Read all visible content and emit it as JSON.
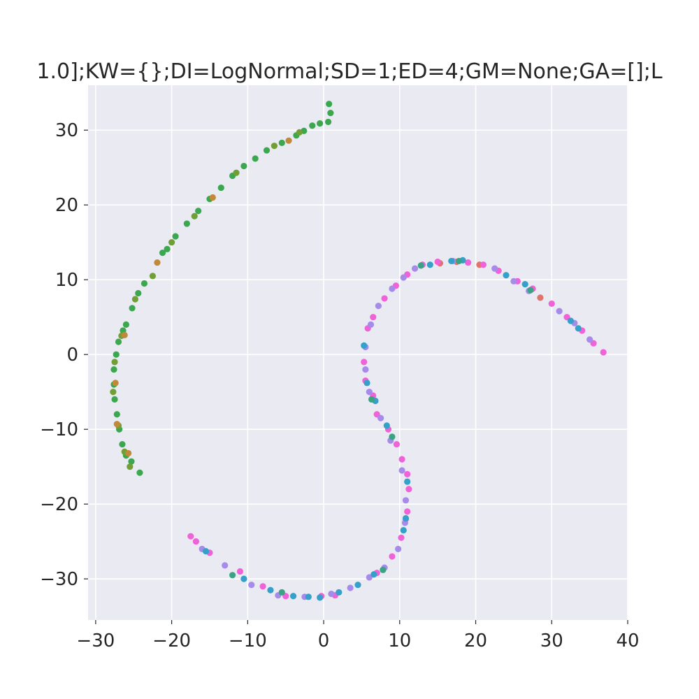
{
  "chart_data": {
    "type": "scatter",
    "title": "1.0];KW={};DI=LogNormal;SD=1;ED=4;GM=None;GA=[];L",
    "xlabel": "",
    "ylabel": "",
    "xlim": [
      -31,
      40
    ],
    "ylim": [
      -35.5,
      36
    ],
    "grid": true,
    "background": "#eaeaf2",
    "x_ticks": [
      -30,
      -20,
      -10,
      0,
      10,
      20,
      30,
      40
    ],
    "y_ticks": [
      -30,
      -20,
      -10,
      0,
      10,
      20,
      30
    ],
    "x_tick_labels": [
      "−30",
      "−20",
      "−10",
      "0",
      "10",
      "20",
      "30",
      "40"
    ],
    "y_tick_labels": [
      "−30",
      "−20",
      "−10",
      "0",
      "10",
      "20",
      "30"
    ],
    "series": [
      {
        "color": "#3ba74e",
        "points": [
          [
            0.7,
            33.5
          ],
          [
            0.9,
            32.3
          ],
          [
            0.6,
            31.1
          ],
          [
            -0.5,
            30.9
          ],
          [
            -1.5,
            30.6
          ],
          [
            -2.6,
            29.9
          ],
          [
            -3.6,
            29.3
          ],
          [
            -5.5,
            28.3
          ],
          [
            -7.5,
            27.3
          ],
          [
            -9.0,
            26.2
          ],
          [
            -10.5,
            25.2
          ],
          [
            -12.0,
            23.9
          ],
          [
            -13.5,
            22.3
          ],
          [
            -15.0,
            20.8
          ],
          [
            -16.5,
            19.2
          ],
          [
            -18.0,
            17.5
          ],
          [
            -19.5,
            15.8
          ],
          [
            -20.6,
            14.1
          ],
          [
            -21.2,
            13.6
          ],
          [
            -23.6,
            9.5
          ],
          [
            -24.4,
            8.2
          ],
          [
            -25.2,
            6.2
          ],
          [
            -26.0,
            4.0
          ],
          [
            -26.4,
            3.2
          ],
          [
            -27.0,
            1.7
          ],
          [
            -27.3,
            0.0
          ],
          [
            -27.6,
            -2.0
          ],
          [
            -27.6,
            -4.0
          ],
          [
            -27.5,
            -6.0
          ],
          [
            -27.2,
            -8.0
          ],
          [
            -26.9,
            -10.0
          ],
          [
            -26.5,
            -12.0
          ],
          [
            -26.0,
            -13.5
          ],
          [
            -25.3,
            -14.3
          ],
          [
            -24.2,
            -15.8
          ]
        ]
      },
      {
        "color": "#6f9f35",
        "points": [
          [
            -3.2,
            29.7
          ],
          [
            -6.5,
            27.9
          ],
          [
            -11.5,
            24.3
          ],
          [
            -17.0,
            18.5
          ],
          [
            -20.0,
            15.0
          ],
          [
            -22.5,
            10.5
          ],
          [
            -24.8,
            7.4
          ],
          [
            -26.6,
            2.5
          ],
          [
            -27.5,
            -1.0
          ],
          [
            -27.7,
            -5.0
          ],
          [
            -27.0,
            -9.5
          ],
          [
            -26.2,
            -13.0
          ],
          [
            -25.5,
            -15.0
          ]
        ]
      },
      {
        "color": "#c08a3a",
        "points": [
          [
            -4.6,
            28.6
          ],
          [
            -14.6,
            21.0
          ],
          [
            -21.9,
            12.3
          ],
          [
            -26.2,
            2.6
          ],
          [
            -27.4,
            -3.8
          ],
          [
            -27.2,
            -9.3
          ],
          [
            -25.7,
            -13.2
          ]
        ]
      },
      {
        "color": "#e0736d",
        "points": [
          [
            17.5,
            12.4
          ],
          [
            20.5,
            12.0
          ],
          [
            28.5,
            7.6
          ],
          [
            15.3,
            12.2
          ]
        ]
      },
      {
        "color": "#f062d8",
        "points": [
          [
            15.0,
            12.4
          ],
          [
            13.0,
            12.0
          ],
          [
            11.0,
            10.7
          ],
          [
            9.5,
            9.2
          ],
          [
            8.0,
            7.5
          ],
          [
            6.5,
            5.0
          ],
          [
            5.8,
            3.5
          ],
          [
            5.3,
            -1.0
          ],
          [
            5.5,
            -3.5
          ],
          [
            6.5,
            -5.5
          ],
          [
            7.0,
            -8.0
          ],
          [
            8.5,
            -10.0
          ],
          [
            9.6,
            -12.0
          ],
          [
            10.3,
            -14.0
          ],
          [
            11.0,
            -16.0
          ],
          [
            11.2,
            -18.0
          ],
          [
            11.0,
            -21.0
          ],
          [
            10.8,
            -22.0
          ],
          [
            10.2,
            -24.5
          ],
          [
            9.0,
            -27.0
          ],
          [
            7.0,
            -29.2
          ],
          [
            19.0,
            12.3
          ],
          [
            21.0,
            12.0
          ],
          [
            23.0,
            11.2
          ],
          [
            25.5,
            9.8
          ],
          [
            27.5,
            8.8
          ],
          [
            30.0,
            6.8
          ],
          [
            32.0,
            5.0
          ],
          [
            34.0,
            3.2
          ],
          [
            35.5,
            1.5
          ],
          [
            36.8,
            0.3
          ],
          [
            -17.5,
            -24.3
          ],
          [
            -16.8,
            -25.0
          ],
          [
            -15.0,
            -26.5
          ],
          [
            -11.0,
            -29.0
          ],
          [
            -8.0,
            -31.0
          ],
          [
            -5.0,
            -32.3
          ],
          [
            -0.3,
            -32.3
          ],
          [
            1.5,
            -32.2
          ]
        ]
      },
      {
        "color": "#a78bea",
        "points": [
          [
            17.0,
            12.5
          ],
          [
            12.0,
            11.5
          ],
          [
            10.5,
            10.3
          ],
          [
            9.0,
            8.8
          ],
          [
            7.2,
            6.5
          ],
          [
            6.2,
            4.0
          ],
          [
            5.5,
            1.0
          ],
          [
            5.5,
            -2.0
          ],
          [
            6.0,
            -5.0
          ],
          [
            7.5,
            -8.5
          ],
          [
            8.8,
            -11.5
          ],
          [
            10.3,
            -15.5
          ],
          [
            10.8,
            -19.5
          ],
          [
            10.7,
            -22.5
          ],
          [
            9.8,
            -26.0
          ],
          [
            8.0,
            -28.5
          ],
          [
            6.0,
            -29.8
          ],
          [
            3.5,
            -31.2
          ],
          [
            1.0,
            -32.0
          ],
          [
            -2.5,
            -32.4
          ],
          [
            -6.0,
            -32.2
          ],
          [
            -9.5,
            -30.8
          ],
          [
            -13.0,
            -28.2
          ],
          [
            -16.0,
            -26.0
          ],
          [
            22.5,
            11.5
          ],
          [
            25.0,
            9.8
          ],
          [
            27.0,
            8.5
          ],
          [
            31.0,
            5.8
          ],
          [
            33.0,
            4.2
          ],
          [
            35.0,
            2.0
          ]
        ]
      },
      {
        "color": "#35a0c9",
        "points": [
          [
            18.3,
            12.6
          ],
          [
            16.8,
            12.5
          ],
          [
            14.0,
            12.0
          ],
          [
            5.3,
            1.2
          ],
          [
            5.7,
            -3.8
          ],
          [
            6.8,
            -6.2
          ],
          [
            8.3,
            -9.5
          ],
          [
            11.0,
            -17.0
          ],
          [
            10.8,
            -21.9
          ],
          [
            10.5,
            -23.5
          ],
          [
            6.6,
            -29.4
          ],
          [
            4.5,
            -30.8
          ],
          [
            2.0,
            -31.8
          ],
          [
            -0.5,
            -32.5
          ],
          [
            -2.0,
            -32.4
          ],
          [
            -4.0,
            -32.3
          ],
          [
            -7.0,
            -31.5
          ],
          [
            -10.5,
            -30.0
          ],
          [
            -15.5,
            -26.3
          ],
          [
            24.0,
            10.6
          ],
          [
            26.5,
            9.4
          ],
          [
            32.5,
            4.5
          ],
          [
            33.5,
            3.5
          ]
        ]
      },
      {
        "color": "#3aa383",
        "points": [
          [
            17.8,
            12.5
          ],
          [
            27.2,
            8.6
          ],
          [
            9.0,
            -11.0
          ],
          [
            7.8,
            -28.8
          ],
          [
            -5.5,
            -31.8
          ],
          [
            -12.0,
            -29.5
          ],
          [
            6.3,
            -6.0
          ],
          [
            12.8,
            11.9
          ]
        ]
      }
    ]
  }
}
